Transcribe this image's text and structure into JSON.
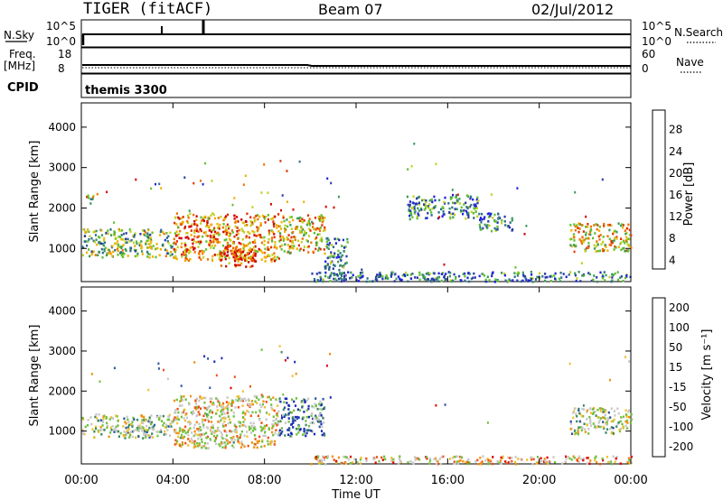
{
  "header": {
    "station": "TIGER (fitACF)",
    "beam": "Beam 07",
    "date": "02/Jul/2012"
  },
  "top_panels": {
    "nsky": {
      "label": "N.Sky",
      "ticks": [
        "10^5",
        "10^0"
      ]
    },
    "nsearch": {
      "label": "N.Search",
      "ticks": [
        "10^5",
        "10^0"
      ]
    },
    "freq": {
      "label_line1": "Freq.",
      "label_line2": "[MHz]",
      "ticks": [
        "18",
        "8"
      ]
    },
    "nave": {
      "label": "Nave",
      "ticks": [
        "60",
        "0"
      ]
    },
    "cpid": {
      "label": "CPID",
      "value": "themis 3300"
    }
  },
  "chart_data": [
    {
      "type": "heatmap",
      "name": "power",
      "ylabel": "Slant Range [km]",
      "ylim": [
        180,
        4600
      ],
      "yticks": [
        "4000",
        "3000",
        "2000",
        "1000"
      ],
      "xlim": [
        0,
        24
      ],
      "colorbar": {
        "label": "Power [dB]",
        "ticks": [
          "28",
          "24",
          "20",
          "16",
          "12",
          "8",
          "4"
        ],
        "colors": [
          "#2020e0",
          "#2a3aa8",
          "#2f6f8a",
          "#3a9a5a",
          "#60c030",
          "#c0d020",
          "#f0b000",
          "#f07000",
          "#e03000",
          "#d00000"
        ]
      },
      "regions": [
        {
          "t0": 0.0,
          "t1": 4.0,
          "r0": 800,
          "r1": 1500,
          "level": 0.45
        },
        {
          "t0": 0.2,
          "t1": 0.5,
          "r0": 2050,
          "r1": 2350,
          "level": 0.55
        },
        {
          "t0": 4.0,
          "t1": 8.6,
          "r0": 700,
          "r1": 1900,
          "level": 0.72
        },
        {
          "t0": 6.0,
          "t1": 7.6,
          "r0": 550,
          "r1": 1100,
          "level": 0.8
        },
        {
          "t0": 8.6,
          "t1": 10.6,
          "r0": 900,
          "r1": 1850,
          "level": 0.62
        },
        {
          "t0": 10.6,
          "t1": 11.6,
          "r0": 300,
          "r1": 1300,
          "level": 0.25
        },
        {
          "t0": 14.2,
          "t1": 17.3,
          "r0": 1750,
          "r1": 2350,
          "level": 0.3
        },
        {
          "t0": 17.3,
          "t1": 18.8,
          "r0": 1450,
          "r1": 1900,
          "level": 0.28
        },
        {
          "t0": 21.3,
          "t1": 24.0,
          "r0": 950,
          "r1": 1650,
          "level": 0.6
        },
        {
          "t0": 10.0,
          "t1": 24.0,
          "r0": 200,
          "r1": 450,
          "level": 0.25
        }
      ]
    },
    {
      "type": "heatmap",
      "name": "velocity",
      "ylabel": "Slant Range [km]",
      "ylim": [
        180,
        4600
      ],
      "yticks": [
        "4000",
        "3000",
        "2000",
        "1000"
      ],
      "xlim": [
        0,
        24
      ],
      "xticks": [
        "00:00",
        "04:00",
        "08:00",
        "12:00",
        "16:00",
        "20:00",
        "00:00"
      ],
      "xlabel": "Time UT",
      "colorbar": {
        "label": "Velocity [m s⁻¹]",
        "ticks": [
          "200",
          "100",
          "50",
          "15",
          "-15",
          "-50",
          "-100",
          "-200"
        ],
        "colors": [
          "#1a2ab8",
          "#2d55a0",
          "#3a8a60",
          "#70c040",
          "#c8c8c8",
          "#f0c030",
          "#f09010",
          "#f05010",
          "#e00000"
        ]
      },
      "regions": [
        {
          "t0": 0.0,
          "t1": 4.0,
          "r0": 850,
          "r1": 1450,
          "level": 0.45
        },
        {
          "t0": 4.0,
          "t1": 8.6,
          "r0": 600,
          "r1": 1900,
          "level": 0.6
        },
        {
          "t0": 8.6,
          "t1": 10.6,
          "r0": 900,
          "r1": 1850,
          "level": 0.15
        },
        {
          "t0": 21.3,
          "t1": 24.0,
          "r0": 950,
          "r1": 1600,
          "level": 0.45
        },
        {
          "t0": 10.0,
          "t1": 24.0,
          "r0": 200,
          "r1": 400,
          "level": 0.7
        }
      ]
    }
  ]
}
